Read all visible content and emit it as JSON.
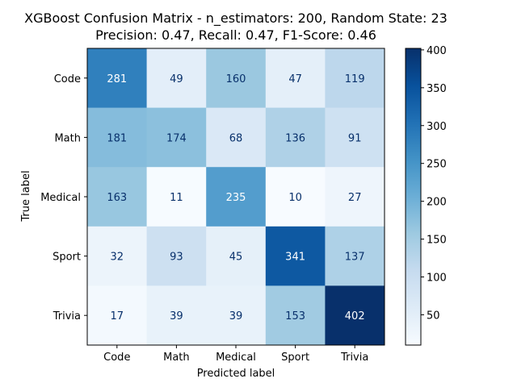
{
  "chart_data": {
    "type": "heatmap",
    "title": "XGBoost Confusion Matrix - n_estimators: 200, Random State: 23",
    "subtitle": "Precision: 0.47, Recall: 0.47, F1-Score: 0.46",
    "xlabel": "Predicted label",
    "ylabel": "True label",
    "x_categories": [
      "Code",
      "Math",
      "Medical",
      "Sport",
      "Trivia"
    ],
    "y_categories": [
      "Code",
      "Math",
      "Medical",
      "Sport",
      "Trivia"
    ],
    "values": [
      [
        281,
        49,
        160,
        47,
        119
      ],
      [
        181,
        174,
        68,
        136,
        91
      ],
      [
        163,
        11,
        235,
        10,
        27
      ],
      [
        32,
        93,
        45,
        341,
        137
      ],
      [
        17,
        39,
        39,
        153,
        402
      ]
    ],
    "colormap": "Blues",
    "color_range": [
      10,
      402
    ],
    "colorbar_ticks": [
      50,
      100,
      150,
      200,
      250,
      300,
      350,
      400
    ],
    "grid": false
  }
}
